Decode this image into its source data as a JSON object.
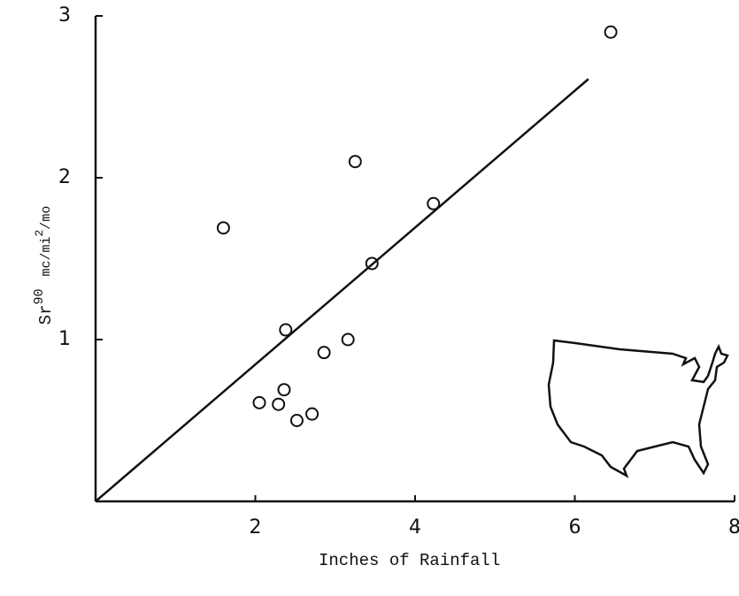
{
  "chart_data": {
    "type": "scatter",
    "xlabel": "Inches of Rainfall",
    "ylabel": [
      "Sr",
      "90",
      "mc/mi",
      "2",
      "/mo"
    ],
    "xlim": [
      0,
      8
    ],
    "ylim": [
      0,
      3
    ],
    "xticks": [
      2,
      4,
      6,
      8
    ],
    "yticks": [
      1,
      2,
      3
    ],
    "color": "#111111",
    "x": [
      1.6,
      2.38,
      2.05,
      2.29,
      2.36,
      2.52,
      2.71,
      2.86,
      3.16,
      3.25,
      3.46,
      4.23,
      6.45
    ],
    "values": [
      1.69,
      1.06,
      0.61,
      0.6,
      0.69,
      0.5,
      0.54,
      0.92,
      1.0,
      2.1,
      1.47,
      1.84,
      2.9
    ],
    "fit_line": {
      "x": [
        0,
        6.17
      ],
      "y": [
        0,
        2.61
      ]
    }
  }
}
